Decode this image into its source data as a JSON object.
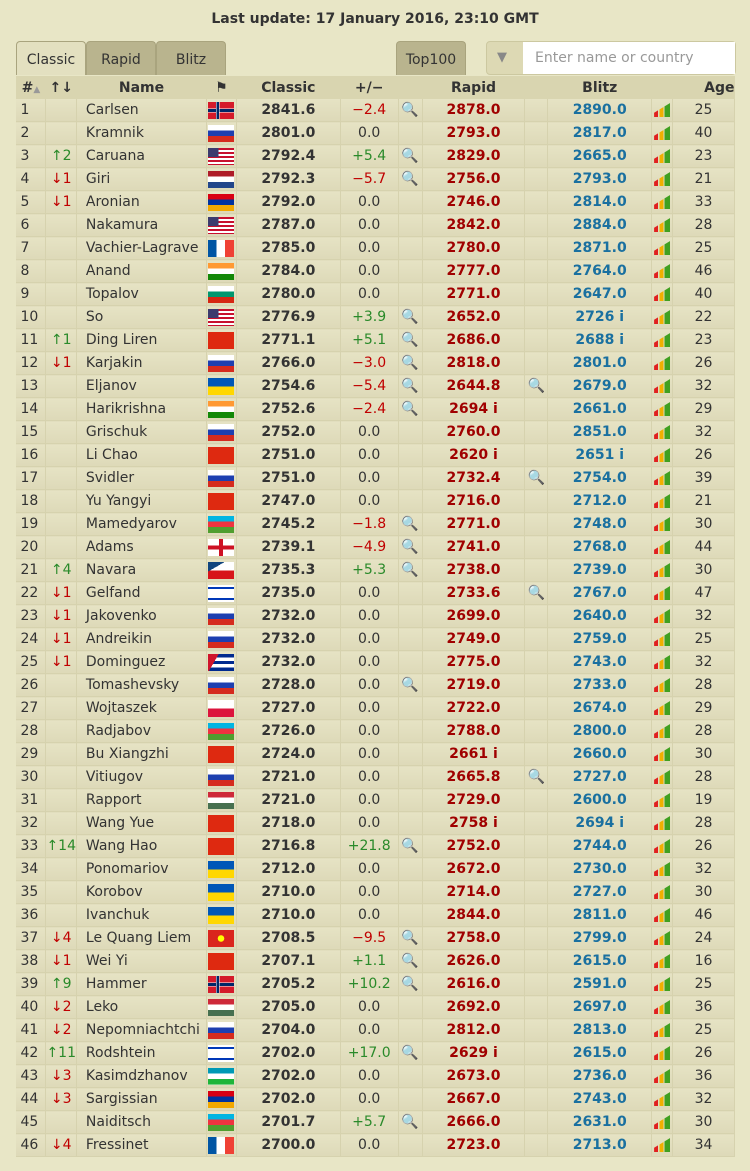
{
  "title": "Last update: 17 January 2016, 23:10 GMT",
  "tabs": [
    "Classic",
    "Rapid",
    "Blitz"
  ],
  "top100": "Top100",
  "filter": {
    "placeholder": "Enter name or country",
    "icon": "filter-icon"
  },
  "headers": {
    "rank": "#",
    "change": "↑↓",
    "name": "Name",
    "classic": "Classic",
    "diff": "+/−",
    "rapid": "Rapid",
    "blitz": "Blitz",
    "age": "Age"
  },
  "colors": {
    "rapid": "#a00000",
    "blitz": "#1a70a0",
    "up": "#2a8a2a",
    "down": "#c00000"
  },
  "rows": [
    [
      "1",
      "",
      "Carlsen",
      "NOR",
      "2841.6",
      "−2.4",
      "2878.0",
      "2890.0",
      "25",
      1,
      0
    ],
    [
      "2",
      "",
      "Kramnik",
      "RUS",
      "2801.0",
      "0.0",
      "2793.0",
      "2817.0",
      "40",
      0,
      0
    ],
    [
      "3",
      "↑2",
      "Caruana",
      "USA",
      "2792.4",
      "+5.4",
      "2829.0",
      "2665.0",
      "23",
      1,
      0
    ],
    [
      "4",
      "↓1",
      "Giri",
      "NED",
      "2792.3",
      "−5.7",
      "2756.0",
      "2793.0",
      "21",
      1,
      0
    ],
    [
      "5",
      "↓1",
      "Aronian",
      "ARM",
      "2792.0",
      "0.0",
      "2746.0",
      "2814.0",
      "33",
      0,
      0
    ],
    [
      "6",
      "",
      "Nakamura",
      "USA",
      "2787.0",
      "0.0",
      "2842.0",
      "2884.0",
      "28",
      0,
      0
    ],
    [
      "7",
      "",
      "Vachier-Lagrave",
      "FRA",
      "2785.0",
      "0.0",
      "2780.0",
      "2871.0",
      "25",
      0,
      0
    ],
    [
      "8",
      "",
      "Anand",
      "IND",
      "2784.0",
      "0.0",
      "2777.0",
      "2764.0",
      "46",
      0,
      0
    ],
    [
      "9",
      "",
      "Topalov",
      "BUL",
      "2780.0",
      "0.0",
      "2771.0",
      "2647.0",
      "40",
      0,
      0
    ],
    [
      "10",
      "",
      "So",
      "USA",
      "2776.9",
      "+3.9",
      "2652.0",
      "2726 i",
      "22",
      1,
      0
    ],
    [
      "11",
      "↑1",
      "Ding Liren",
      "CHN",
      "2771.1",
      "+5.1",
      "2686.0",
      "2688 i",
      "23",
      1,
      0
    ],
    [
      "12",
      "↓1",
      "Karjakin",
      "RUS",
      "2766.0",
      "−3.0",
      "2818.0",
      "2801.0",
      "26",
      1,
      0
    ],
    [
      "13",
      "",
      "Eljanov",
      "UKR",
      "2754.6",
      "−5.4",
      "2644.8",
      "2679.0",
      "32",
      1,
      1
    ],
    [
      "14",
      "",
      "Harikrishna",
      "IND",
      "2752.6",
      "−2.4",
      "2694 i",
      "2661.0",
      "29",
      1,
      0
    ],
    [
      "15",
      "",
      "Grischuk",
      "RUS",
      "2752.0",
      "0.0",
      "2760.0",
      "2851.0",
      "32",
      0,
      0
    ],
    [
      "16",
      "",
      "Li Chao",
      "CHN",
      "2751.0",
      "0.0",
      "2620 i",
      "2651 i",
      "26",
      0,
      0
    ],
    [
      "17",
      "",
      "Svidler",
      "RUS",
      "2751.0",
      "0.0",
      "2732.4",
      "2754.0",
      "39",
      0,
      1
    ],
    [
      "18",
      "",
      "Yu Yangyi",
      "CHN",
      "2747.0",
      "0.0",
      "2716.0",
      "2712.0",
      "21",
      0,
      0
    ],
    [
      "19",
      "",
      "Mamedyarov",
      "AZE",
      "2745.2",
      "−1.8",
      "2771.0",
      "2748.0",
      "30",
      1,
      0
    ],
    [
      "20",
      "",
      "Adams",
      "ENG",
      "2739.1",
      "−4.9",
      "2741.0",
      "2768.0",
      "44",
      1,
      0
    ],
    [
      "21",
      "↑4",
      "Navara",
      "CZE",
      "2735.3",
      "+5.3",
      "2738.0",
      "2739.0",
      "30",
      1,
      0
    ],
    [
      "22",
      "↓1",
      "Gelfand",
      "ISR",
      "2735.0",
      "0.0",
      "2733.6",
      "2767.0",
      "47",
      0,
      1
    ],
    [
      "23",
      "↓1",
      "Jakovenko",
      "RUS",
      "2732.0",
      "0.0",
      "2699.0",
      "2640.0",
      "32",
      0,
      0
    ],
    [
      "24",
      "↓1",
      "Andreikin",
      "RUS",
      "2732.0",
      "0.0",
      "2749.0",
      "2759.0",
      "25",
      0,
      0
    ],
    [
      "25",
      "↓1",
      "Dominguez",
      "CUB",
      "2732.0",
      "0.0",
      "2775.0",
      "2743.0",
      "32",
      0,
      0
    ],
    [
      "26",
      "",
      "Tomashevsky",
      "RUS",
      "2728.0",
      "0.0",
      "2719.0",
      "2733.0",
      "28",
      1,
      0
    ],
    [
      "27",
      "",
      "Wojtaszek",
      "POL",
      "2727.0",
      "0.0",
      "2722.0",
      "2674.0",
      "29",
      0,
      0
    ],
    [
      "28",
      "",
      "Radjabov",
      "AZE",
      "2726.0",
      "0.0",
      "2788.0",
      "2800.0",
      "28",
      0,
      0
    ],
    [
      "29",
      "",
      "Bu Xiangzhi",
      "CHN",
      "2724.0",
      "0.0",
      "2661 i",
      "2660.0",
      "30",
      0,
      0
    ],
    [
      "30",
      "",
      "Vitiugov",
      "RUS",
      "2721.0",
      "0.0",
      "2665.8",
      "2727.0",
      "28",
      0,
      1
    ],
    [
      "31",
      "",
      "Rapport",
      "HUN",
      "2721.0",
      "0.0",
      "2729.0",
      "2600.0",
      "19",
      0,
      0
    ],
    [
      "32",
      "",
      "Wang Yue",
      "CHN",
      "2718.0",
      "0.0",
      "2758 i",
      "2694 i",
      "28",
      0,
      0
    ],
    [
      "33",
      "↑14",
      "Wang Hao",
      "CHN",
      "2716.8",
      "+21.8",
      "2752.0",
      "2744.0",
      "26",
      1,
      0
    ],
    [
      "34",
      "",
      "Ponomariov",
      "UKR",
      "2712.0",
      "0.0",
      "2672.0",
      "2730.0",
      "32",
      0,
      0
    ],
    [
      "35",
      "",
      "Korobov",
      "UKR",
      "2710.0",
      "0.0",
      "2714.0",
      "2727.0",
      "30",
      0,
      0
    ],
    [
      "36",
      "",
      "Ivanchuk",
      "UKR",
      "2710.0",
      "0.0",
      "2844.0",
      "2811.0",
      "46",
      0,
      0
    ],
    [
      "37",
      "↓4",
      "Le Quang Liem",
      "VIE",
      "2708.5",
      "−9.5",
      "2758.0",
      "2799.0",
      "24",
      1,
      0
    ],
    [
      "38",
      "↓1",
      "Wei Yi",
      "CHN",
      "2707.1",
      "+1.1",
      "2626.0",
      "2615.0",
      "16",
      1,
      0
    ],
    [
      "39",
      "↑9",
      "Hammer",
      "NOR",
      "2705.2",
      "+10.2",
      "2616.0",
      "2591.0",
      "25",
      1,
      0
    ],
    [
      "40",
      "↓2",
      "Leko",
      "HUN",
      "2705.0",
      "0.0",
      "2692.0",
      "2697.0",
      "36",
      0,
      0
    ],
    [
      "41",
      "↓2",
      "Nepomniachtchi",
      "RUS",
      "2704.0",
      "0.0",
      "2812.0",
      "2813.0",
      "25",
      0,
      0
    ],
    [
      "42",
      "↑11",
      "Rodshtein",
      "ISR",
      "2702.0",
      "+17.0",
      "2629 i",
      "2615.0",
      "26",
      1,
      0
    ],
    [
      "43",
      "↓3",
      "Kasimdzhanov",
      "UZB",
      "2702.0",
      "0.0",
      "2673.0",
      "2736.0",
      "36",
      0,
      0
    ],
    [
      "44",
      "↓3",
      "Sargissian",
      "ARM",
      "2702.0",
      "0.0",
      "2667.0",
      "2743.0",
      "32",
      0,
      0
    ],
    [
      "45",
      "",
      "Naiditsch",
      "AZE",
      "2701.7",
      "+5.7",
      "2666.0",
      "2631.0",
      "30",
      1,
      0
    ],
    [
      "46",
      "↓4",
      "Fressinet",
      "FRA",
      "2700.0",
      "0.0",
      "2723.0",
      "2713.0",
      "34",
      0,
      0
    ]
  ]
}
